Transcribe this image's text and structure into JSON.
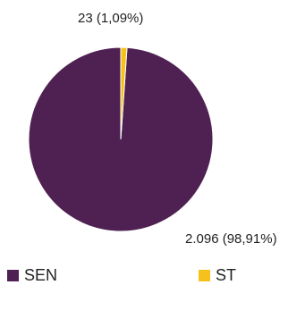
{
  "chart_data": {
    "type": "pie",
    "slices": [
      {
        "name": "SEN",
        "value": 2096,
        "label": "2.096 (98,91%)",
        "color": "#4f2153"
      },
      {
        "name": "ST",
        "value": 23,
        "label": "23 (1,09%)",
        "color": "#f6c11b"
      }
    ],
    "legend_position": "bottom"
  }
}
